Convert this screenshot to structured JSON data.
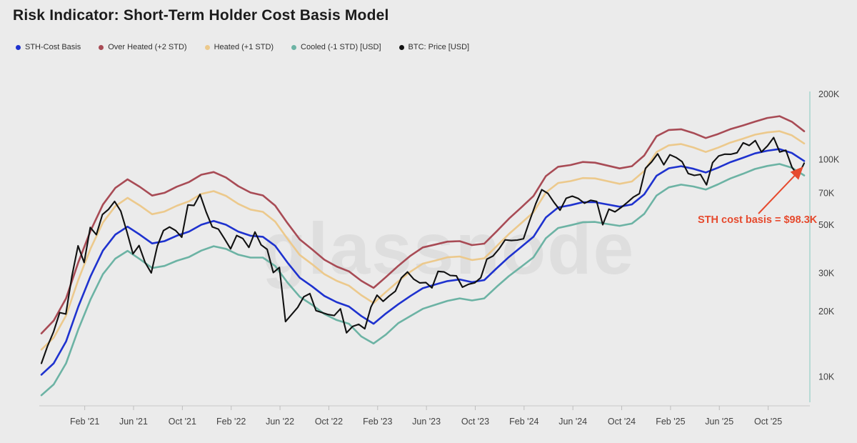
{
  "header": {
    "title": "Risk Indicator: Short-Term Holder Cost Basis Model"
  },
  "legend": {
    "items": [
      {
        "label": "STH-Cost Basis",
        "color": "#1e32cf"
      },
      {
        "label": "Over Heated (+2 STD)",
        "color": "#a84b55"
      },
      {
        "label": "Heated (+1 STD)",
        "color": "#ecc98c"
      },
      {
        "label": "Cooled (-1 STD) [USD]",
        "color": "#6cb3a4"
      },
      {
        "label": "BTC: Price [USD]",
        "color": "#111111"
      }
    ]
  },
  "watermark": {
    "text": "glassnode",
    "color": "#dedede"
  },
  "annotation": {
    "text": "STH cost basis = $98.3K",
    "color": "#e64a2e"
  },
  "chart_data": {
    "type": "line",
    "title": "Risk Indicator: Short-Term Holder Cost Basis Model",
    "y_scale": "log",
    "y_unit": "USD",
    "ylim_k_usd": [
      7.2,
      230
    ],
    "y_ticks": [
      {
        "label": "200K",
        "value_k": 200
      },
      {
        "label": "100K",
        "value_k": 100
      },
      {
        "label": "70K",
        "value_k": 70
      },
      {
        "label": "50K",
        "value_k": 50
      },
      {
        "label": "30K",
        "value_k": 30
      },
      {
        "label": "20K",
        "value_k": 20
      },
      {
        "label": "10K",
        "value_k": 10
      }
    ],
    "x_ticks": [
      "Feb '21",
      "Jun '21",
      "Oct '21",
      "Feb '22",
      "Jun '22",
      "Oct '22",
      "Feb '23",
      "Jun '23",
      "Oct '23",
      "Feb '24",
      "Jun '24",
      "Oct '24",
      "Feb '25",
      "Jun '25",
      "Oct '25"
    ],
    "x_start": "2020-10-15",
    "x_end": "2025-12-15",
    "grid": false,
    "legend_position": "top-left",
    "series": [
      {
        "name": "Over Heated (+2 STD)",
        "color": "#a84b55",
        "width": 2.6,
        "points_per_month": 1,
        "values_k_usd": [
          15.8,
          18.1,
          22.9,
          33.6,
          47,
          61.9,
          73.8,
          80.9,
          74.7,
          68.1,
          70.1,
          74.8,
          78.6,
          85,
          87.4,
          82.5,
          75.3,
          70.3,
          68.2,
          61.2,
          50.9,
          42.8,
          38.5,
          34.5,
          32.1,
          30.5,
          27.6,
          25.6,
          28.7,
          32.3,
          36,
          39.3,
          40.5,
          41.8,
          42,
          40.3,
          40.9,
          46.6,
          53.3,
          60,
          67.8,
          83.7,
          92.4,
          94.1,
          97.2,
          96.5,
          93.6,
          90.8,
          93,
          104.2,
          127.7,
          136.5,
          137.6,
          132.1,
          125.3,
          130.8,
          137.7,
          143.1,
          149.1,
          155,
          158,
          149,
          134.7
        ]
      },
      {
        "name": "Heated (+1 STD)",
        "color": "#ecc98c",
        "width": 2.6,
        "points_per_month": 1,
        "values_k_usd": [
          13.3,
          15.1,
          19.1,
          27.9,
          38.9,
          51.2,
          60.8,
          66.5,
          61.3,
          55.9,
          57.5,
          61.1,
          64.1,
          69.3,
          71.4,
          67.9,
          62.4,
          58.7,
          57.3,
          51.7,
          43.1,
          36.3,
          32.9,
          29.6,
          27.6,
          26.2,
          23.7,
          21.8,
          24.5,
          27.4,
          30.4,
          33.1,
          34.2,
          35.4,
          35.7,
          34.4,
          35,
          39.8,
          45.3,
          50.8,
          57.1,
          70.3,
          77.8,
          79.4,
          82,
          81.7,
          79.4,
          77.1,
          79.1,
          88.4,
          108,
          116,
          117.6,
          113.4,
          108.1,
          113.1,
          119.4,
          124.4,
          129.9,
          133,
          134.8,
          129,
          118.3
        ]
      },
      {
        "name": "Cooled (-1 STD) [USD]",
        "color": "#6cb3a4",
        "width": 2.6,
        "points_per_month": 1,
        "values_k_usd": [
          8.2,
          9.2,
          11.5,
          16.5,
          22.7,
          29.6,
          34.9,
          37.9,
          34.7,
          31.6,
          32.3,
          34.1,
          35.5,
          38,
          39.8,
          38.7,
          36.4,
          35.3,
          35.3,
          32.3,
          27.1,
          23.3,
          21.4,
          19.4,
          18.2,
          17.5,
          15.3,
          14.2,
          15.6,
          17.6,
          19,
          20.5,
          21.4,
          22.3,
          22.9,
          22.4,
          22.9,
          25.9,
          29,
          32,
          35.4,
          43.3,
          48.3,
          49.7,
          51.3,
          51.5,
          50.4,
          49.4,
          50.6,
          56.1,
          68.1,
          74.3,
          76.5,
          75,
          72.6,
          76.7,
          81.6,
          85.7,
          90.3,
          93.2,
          95.2,
          91.5,
          84.3
        ]
      },
      {
        "name": "STH-Cost Basis",
        "color": "#1e32cf",
        "width": 2.6,
        "points_per_month": 1,
        "values_k_usd": [
          10.2,
          11.5,
          14.5,
          21,
          29,
          38,
          45,
          49,
          45,
          41,
          42,
          44.5,
          46.5,
          50,
          52,
          50,
          46.5,
          44.5,
          44,
          40,
          33.5,
          28.5,
          26,
          23.5,
          22,
          21,
          19,
          17.5,
          19.5,
          21.5,
          23.5,
          25.5,
          26.5,
          27.5,
          28,
          27.2,
          27.8,
          31.5,
          35.5,
          39.5,
          44,
          54,
          60,
          61.5,
          63.5,
          63.5,
          62,
          60.5,
          62,
          69,
          84,
          91,
          93,
          90.5,
          87,
          91.5,
          97,
          101.5,
          106.5,
          109.5,
          111.5,
          107,
          98.3
        ]
      },
      {
        "name": "BTC: Price [USD]",
        "color": "#111111",
        "width": 2.1,
        "points_per_month": 2,
        "values_k_usd": [
          11.5,
          13.8,
          16.1,
          19.7,
          19.4,
          29,
          40,
          33.5,
          48.6,
          45,
          55.7,
          58.9,
          64,
          57.8,
          46.5,
          36.7,
          40.1,
          33.5,
          30,
          39.9,
          47,
          48.8,
          47,
          43.8,
          61.7,
          61.3,
          69,
          57.2,
          48.9,
          47.7,
          43.1,
          38.7,
          44.6,
          43.2,
          39.3,
          46.3,
          40.4,
          38.5,
          30.1,
          31.8,
          17.9,
          19.3,
          20.8,
          23.3,
          24.1,
          20.1,
          19.7,
          19.3,
          19.1,
          20.5,
          15.9,
          17,
          17.4,
          16.6,
          20.9,
          23.7,
          22.2,
          23.5,
          24.7,
          28.5,
          30.3,
          28.1,
          27,
          27.1,
          25.6,
          30.5,
          30.3,
          29.2,
          29.1,
          25.8,
          26.6,
          27,
          28.5,
          34.7,
          35.9,
          38.7,
          42.6,
          42.3,
          42.5,
          43.1,
          52,
          62.4,
          72.5,
          69.7,
          63.4,
          58.3,
          66.2,
          67.7,
          66,
          62.8,
          64.8,
          64,
          50,
          59,
          57.3,
          60,
          63.3,
          67,
          69.5,
          91,
          97.3,
          106,
          94.4,
          105,
          102,
          97.5,
          86,
          84.3,
          85.2,
          76.3,
          96.5,
          103.7,
          105.6,
          105.5,
          107.2,
          119.1,
          115.8,
          122,
          108.2,
          115.4,
          126,
          108,
          110.1,
          92,
          84,
          96
        ]
      }
    ],
    "annotations": [
      {
        "text": "STH cost basis = $98.3K",
        "value_k_usd": 98.3,
        "color": "#e64a2e",
        "arrow": true
      }
    ]
  }
}
